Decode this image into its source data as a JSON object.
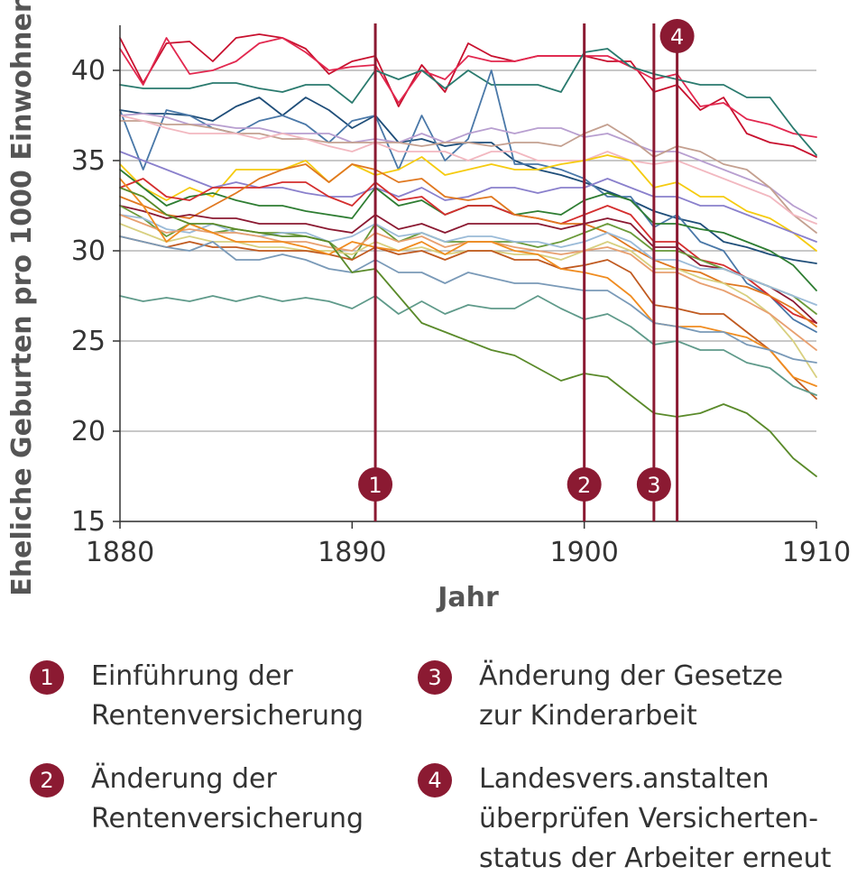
{
  "chart_data": {
    "type": "line",
    "title": "",
    "xlabel": "Jahr",
    "ylabel": "Eheliche Geburten pro 1000 Einwohner",
    "xlim": [
      1880,
      1910
    ],
    "ylim": [
      15,
      42.5
    ],
    "xticks": [
      1880,
      1890,
      1900,
      1910
    ],
    "yticks": [
      15,
      20,
      25,
      30,
      35,
      40
    ],
    "grid": "horizontal",
    "x": [
      1880,
      1881,
      1882,
      1883,
      1884,
      1885,
      1886,
      1887,
      1888,
      1889,
      1890,
      1891,
      1892,
      1893,
      1894,
      1895,
      1896,
      1897,
      1898,
      1899,
      1900,
      1901,
      1902,
      1903,
      1904,
      1905,
      1906,
      1907,
      1908,
      1909,
      1910
    ],
    "series": [
      {
        "color": "#c8102e",
        "values": [
          41.8,
          39.3,
          41.5,
          41.6,
          40.5,
          41.8,
          42.0,
          41.8,
          41.2,
          39.8,
          40.5,
          40.8,
          38.0,
          40.3,
          38.8,
          41.5,
          40.8,
          40.5,
          40.8,
          40.8,
          40.8,
          40.5,
          40.5,
          38.8,
          39.2,
          37.8,
          38.5,
          36.5,
          36.0,
          35.8,
          35.2
        ]
      },
      {
        "color": "#e2284f",
        "values": [
          41.2,
          39.2,
          41.8,
          39.8,
          40.0,
          40.5,
          41.5,
          41.8,
          41.0,
          40.0,
          40.2,
          40.3,
          38.2,
          40.0,
          39.5,
          40.8,
          40.5,
          40.5,
          40.8,
          40.8,
          40.8,
          40.8,
          40.2,
          39.5,
          39.8,
          38.0,
          38.2,
          37.3,
          37.0,
          36.5,
          36.3
        ]
      },
      {
        "color": "#2a7a6e",
        "values": [
          39.2,
          39.0,
          39.0,
          39.0,
          39.3,
          39.3,
          39.0,
          38.8,
          39.2,
          39.2,
          38.2,
          40.0,
          39.5,
          40.0,
          39.0,
          40.0,
          39.2,
          39.2,
          39.2,
          38.8,
          41.0,
          41.2,
          40.2,
          39.8,
          39.5,
          39.2,
          39.2,
          38.5,
          38.5,
          36.8,
          35.3
        ]
      },
      {
        "color": "#1f4e79",
        "values": [
          37.8,
          37.6,
          37.6,
          37.5,
          37.2,
          38.0,
          38.5,
          37.5,
          38.5,
          37.8,
          36.8,
          37.5,
          36.0,
          36.2,
          35.8,
          36.0,
          36.0,
          35.0,
          34.5,
          34.2,
          33.8,
          33.3,
          32.8,
          32.2,
          31.8,
          31.5,
          30.5,
          30.2,
          29.8,
          29.5,
          29.3
        ]
      },
      {
        "color": "#4a78a8",
        "values": [
          37.8,
          34.5,
          37.8,
          37.5,
          36.8,
          36.5,
          37.2,
          37.5,
          37.0,
          36.0,
          37.2,
          37.5,
          34.5,
          37.5,
          35.0,
          36.2,
          40.0,
          34.8,
          34.8,
          34.5,
          34.0,
          33.0,
          33.0,
          31.3,
          32.0,
          30.5,
          30.0,
          28.2,
          27.5,
          26.2,
          25.5
        ]
      },
      {
        "color": "#b89fd0",
        "values": [
          37.5,
          37.6,
          37.4,
          37.0,
          37.0,
          36.8,
          36.8,
          36.5,
          36.5,
          36.5,
          36.0,
          36.2,
          36.0,
          36.5,
          36.0,
          36.5,
          36.8,
          36.5,
          36.8,
          36.8,
          36.3,
          36.5,
          36.0,
          35.5,
          35.5,
          35.0,
          34.5,
          34.0,
          33.5,
          32.5,
          31.8
        ]
      },
      {
        "color": "#c4a090",
        "values": [
          37.2,
          37.2,
          37.0,
          37.0,
          36.8,
          36.5,
          36.5,
          36.2,
          36.2,
          36.0,
          36.0,
          36.0,
          36.0,
          35.8,
          36.0,
          36.0,
          35.8,
          36.0,
          36.0,
          35.8,
          36.5,
          37.0,
          36.2,
          35.2,
          35.8,
          35.5,
          34.8,
          34.5,
          33.5,
          32.0,
          31.0
        ]
      },
      {
        "color": "#f2b8c0",
        "values": [
          37.5,
          37.2,
          36.8,
          36.5,
          36.5,
          36.5,
          36.2,
          36.5,
          36.2,
          35.8,
          35.5,
          36.0,
          35.5,
          35.5,
          35.5,
          35.0,
          35.5,
          35.5,
          35.0,
          35.0,
          35.0,
          35.5,
          35.0,
          34.8,
          35.0,
          34.5,
          34.0,
          33.5,
          33.0,
          32.0,
          31.5
        ]
      },
      {
        "color": "#f5cb10",
        "values": [
          34.8,
          33.5,
          32.8,
          33.5,
          33.0,
          34.5,
          34.5,
          34.5,
          35.0,
          33.8,
          34.8,
          34.2,
          34.5,
          35.2,
          34.2,
          34.5,
          34.8,
          34.5,
          34.5,
          34.8,
          35.0,
          35.3,
          35.0,
          33.5,
          33.8,
          33.0,
          33.0,
          32.2,
          31.8,
          31.0,
          30.0
        ]
      },
      {
        "color": "#8a80cc",
        "values": [
          35.5,
          35.0,
          34.5,
          34.0,
          33.5,
          33.8,
          33.5,
          33.5,
          33.2,
          33.0,
          33.0,
          33.5,
          33.0,
          33.5,
          32.8,
          33.0,
          33.5,
          33.5,
          33.2,
          33.5,
          33.5,
          34.0,
          33.5,
          33.0,
          33.0,
          32.5,
          32.5,
          32.0,
          31.5,
          31.0,
          30.5
        ]
      },
      {
        "color": "#2e7d32",
        "values": [
          34.5,
          33.5,
          32.5,
          33.0,
          33.2,
          32.8,
          32.5,
          32.5,
          32.2,
          32.0,
          31.8,
          33.5,
          32.5,
          32.8,
          32.0,
          32.5,
          32.5,
          32.0,
          32.2,
          32.0,
          32.8,
          33.2,
          32.8,
          31.5,
          31.5,
          31.2,
          31.0,
          30.5,
          30.0,
          29.2,
          27.8
        ]
      },
      {
        "color": "#d42e2e",
        "values": [
          33.5,
          34.0,
          33.0,
          32.8,
          33.5,
          33.5,
          33.5,
          33.8,
          33.8,
          33.0,
          32.5,
          33.8,
          32.8,
          33.0,
          32.0,
          32.5,
          32.5,
          32.0,
          31.8,
          31.5,
          32.0,
          32.5,
          32.0,
          30.5,
          30.5,
          29.5,
          29.2,
          28.5,
          27.5,
          26.5,
          26.0
        ]
      },
      {
        "color": "#e07820",
        "values": [
          33.0,
          32.5,
          32.0,
          31.8,
          32.5,
          33.2,
          34.0,
          34.5,
          34.8,
          33.8,
          34.8,
          34.5,
          33.8,
          34.0,
          33.0,
          32.8,
          33.0,
          32.0,
          31.8,
          31.5,
          31.5,
          31.0,
          30.2,
          29.5,
          29.0,
          28.8,
          28.2,
          28.0,
          27.5,
          26.8,
          25.8
        ]
      },
      {
        "color": "#8b1a32",
        "values": [
          32.5,
          32.2,
          31.8,
          32.0,
          31.8,
          31.8,
          31.5,
          31.5,
          31.5,
          31.2,
          31.0,
          32.0,
          31.2,
          31.5,
          31.0,
          31.5,
          31.5,
          31.5,
          31.5,
          31.2,
          31.5,
          31.8,
          31.5,
          30.2,
          30.2,
          29.2,
          29.0,
          28.5,
          28.0,
          27.2,
          26.0
        ]
      },
      {
        "color": "#6a9a3a",
        "values": [
          32.5,
          31.8,
          30.8,
          31.5,
          31.0,
          31.2,
          31.0,
          31.0,
          30.8,
          30.5,
          29.5,
          31.5,
          30.5,
          31.0,
          30.5,
          30.5,
          30.5,
          30.5,
          30.2,
          30.5,
          31.0,
          31.5,
          31.0,
          30.0,
          30.0,
          29.5,
          29.0,
          28.5,
          28.0,
          27.5,
          26.5
        ]
      },
      {
        "color": "#9bbbd8",
        "values": [
          32.0,
          31.8,
          31.2,
          31.0,
          31.5,
          31.0,
          30.8,
          31.0,
          31.0,
          30.5,
          30.8,
          31.5,
          30.8,
          31.0,
          30.5,
          30.8,
          30.8,
          30.5,
          30.5,
          30.2,
          30.5,
          31.0,
          30.5,
          29.5,
          29.5,
          29.0,
          29.0,
          28.5,
          28.0,
          27.5,
          27.0
        ]
      },
      {
        "color": "#d8d080",
        "values": [
          31.5,
          31.0,
          30.5,
          30.8,
          30.5,
          30.5,
          30.2,
          30.2,
          30.0,
          30.0,
          29.8,
          30.5,
          30.0,
          30.2,
          29.8,
          30.0,
          30.0,
          29.8,
          29.8,
          29.5,
          30.0,
          30.5,
          30.0,
          29.0,
          29.0,
          28.5,
          28.2,
          27.5,
          26.5,
          25.0,
          23.0
        ]
      },
      {
        "color": "#e8a070",
        "values": [
          32.0,
          31.5,
          31.0,
          31.2,
          31.0,
          31.0,
          30.8,
          30.5,
          30.5,
          30.2,
          30.0,
          31.0,
          30.5,
          30.8,
          30.2,
          30.5,
          30.5,
          30.2,
          30.0,
          29.8,
          30.0,
          30.2,
          29.8,
          28.8,
          28.8,
          28.2,
          27.8,
          27.2,
          26.5,
          25.5,
          24.5
        ]
      },
      {
        "color": "#c05a20",
        "values": [
          30.8,
          30.5,
          30.2,
          30.5,
          30.2,
          30.2,
          30.0,
          30.0,
          30.0,
          29.8,
          29.5,
          30.2,
          29.8,
          30.0,
          29.5,
          30.0,
          30.0,
          29.5,
          29.5,
          29.0,
          29.2,
          29.5,
          28.8,
          27.0,
          26.8,
          26.5,
          26.5,
          25.5,
          24.5,
          23.0,
          21.8
        ]
      },
      {
        "color": "#f08c20",
        "values": [
          34.0,
          32.5,
          30.5,
          31.5,
          31.0,
          30.5,
          30.5,
          30.5,
          30.2,
          29.8,
          30.5,
          30.2,
          30.0,
          30.5,
          29.8,
          30.5,
          30.5,
          30.0,
          29.8,
          29.0,
          28.8,
          28.5,
          27.5,
          26.0,
          25.8,
          25.8,
          25.5,
          25.2,
          24.5,
          23.0,
          22.5
        ]
      },
      {
        "color": "#7a9ab8",
        "values": [
          30.8,
          30.5,
          30.2,
          30.0,
          30.5,
          29.5,
          29.5,
          29.8,
          29.5,
          29.0,
          28.8,
          29.5,
          28.8,
          28.8,
          28.2,
          28.8,
          28.5,
          28.2,
          28.2,
          28.0,
          27.8,
          27.8,
          27.0,
          26.0,
          25.8,
          25.5,
          25.5,
          24.8,
          24.5,
          24.0,
          23.8
        ]
      },
      {
        "color": "#5f9a8a",
        "values": [
          27.5,
          27.2,
          27.4,
          27.2,
          27.5,
          27.2,
          27.5,
          27.2,
          27.4,
          27.2,
          26.8,
          27.5,
          26.5,
          27.2,
          26.5,
          27.0,
          26.8,
          26.8,
          27.5,
          26.8,
          26.2,
          26.5,
          25.8,
          24.8,
          25.0,
          24.5,
          24.5,
          23.8,
          23.5,
          22.5,
          22.0
        ]
      },
      {
        "color": "#5a8a2a",
        "values": [
          33.5,
          33.0,
          32.0,
          31.5,
          31.5,
          31.2,
          31.0,
          30.8,
          30.8,
          30.5,
          28.8,
          29.0,
          27.5,
          26.0,
          25.5,
          25.0,
          24.5,
          24.2,
          23.5,
          22.8,
          23.2,
          23.0,
          22.0,
          21.0,
          20.8,
          21.0,
          21.5,
          21.0,
          20.0,
          18.5,
          17.5
        ]
      }
    ],
    "markers": [
      {
        "label": "1",
        "x": 1891
      },
      {
        "label": "2",
        "x": 1900
      },
      {
        "label": "3",
        "x": 1903
      },
      {
        "label": "4",
        "x": 1904
      }
    ],
    "marker_color": "#8b1a32"
  },
  "legend": [
    {
      "number": "1",
      "lines": [
        "Einführung der",
        "Rentenversicherung"
      ]
    },
    {
      "number": "2",
      "lines": [
        "Änderung der",
        "Rentenversicherung"
      ]
    },
    {
      "number": "3",
      "lines": [
        "Änderung der Gesetze",
        "zur Kinderarbeit"
      ]
    },
    {
      "number": "4",
      "lines": [
        "Landesvers.anstalten",
        "überprüfen Versicherten-",
        "status der Arbeiter erneut"
      ]
    }
  ]
}
